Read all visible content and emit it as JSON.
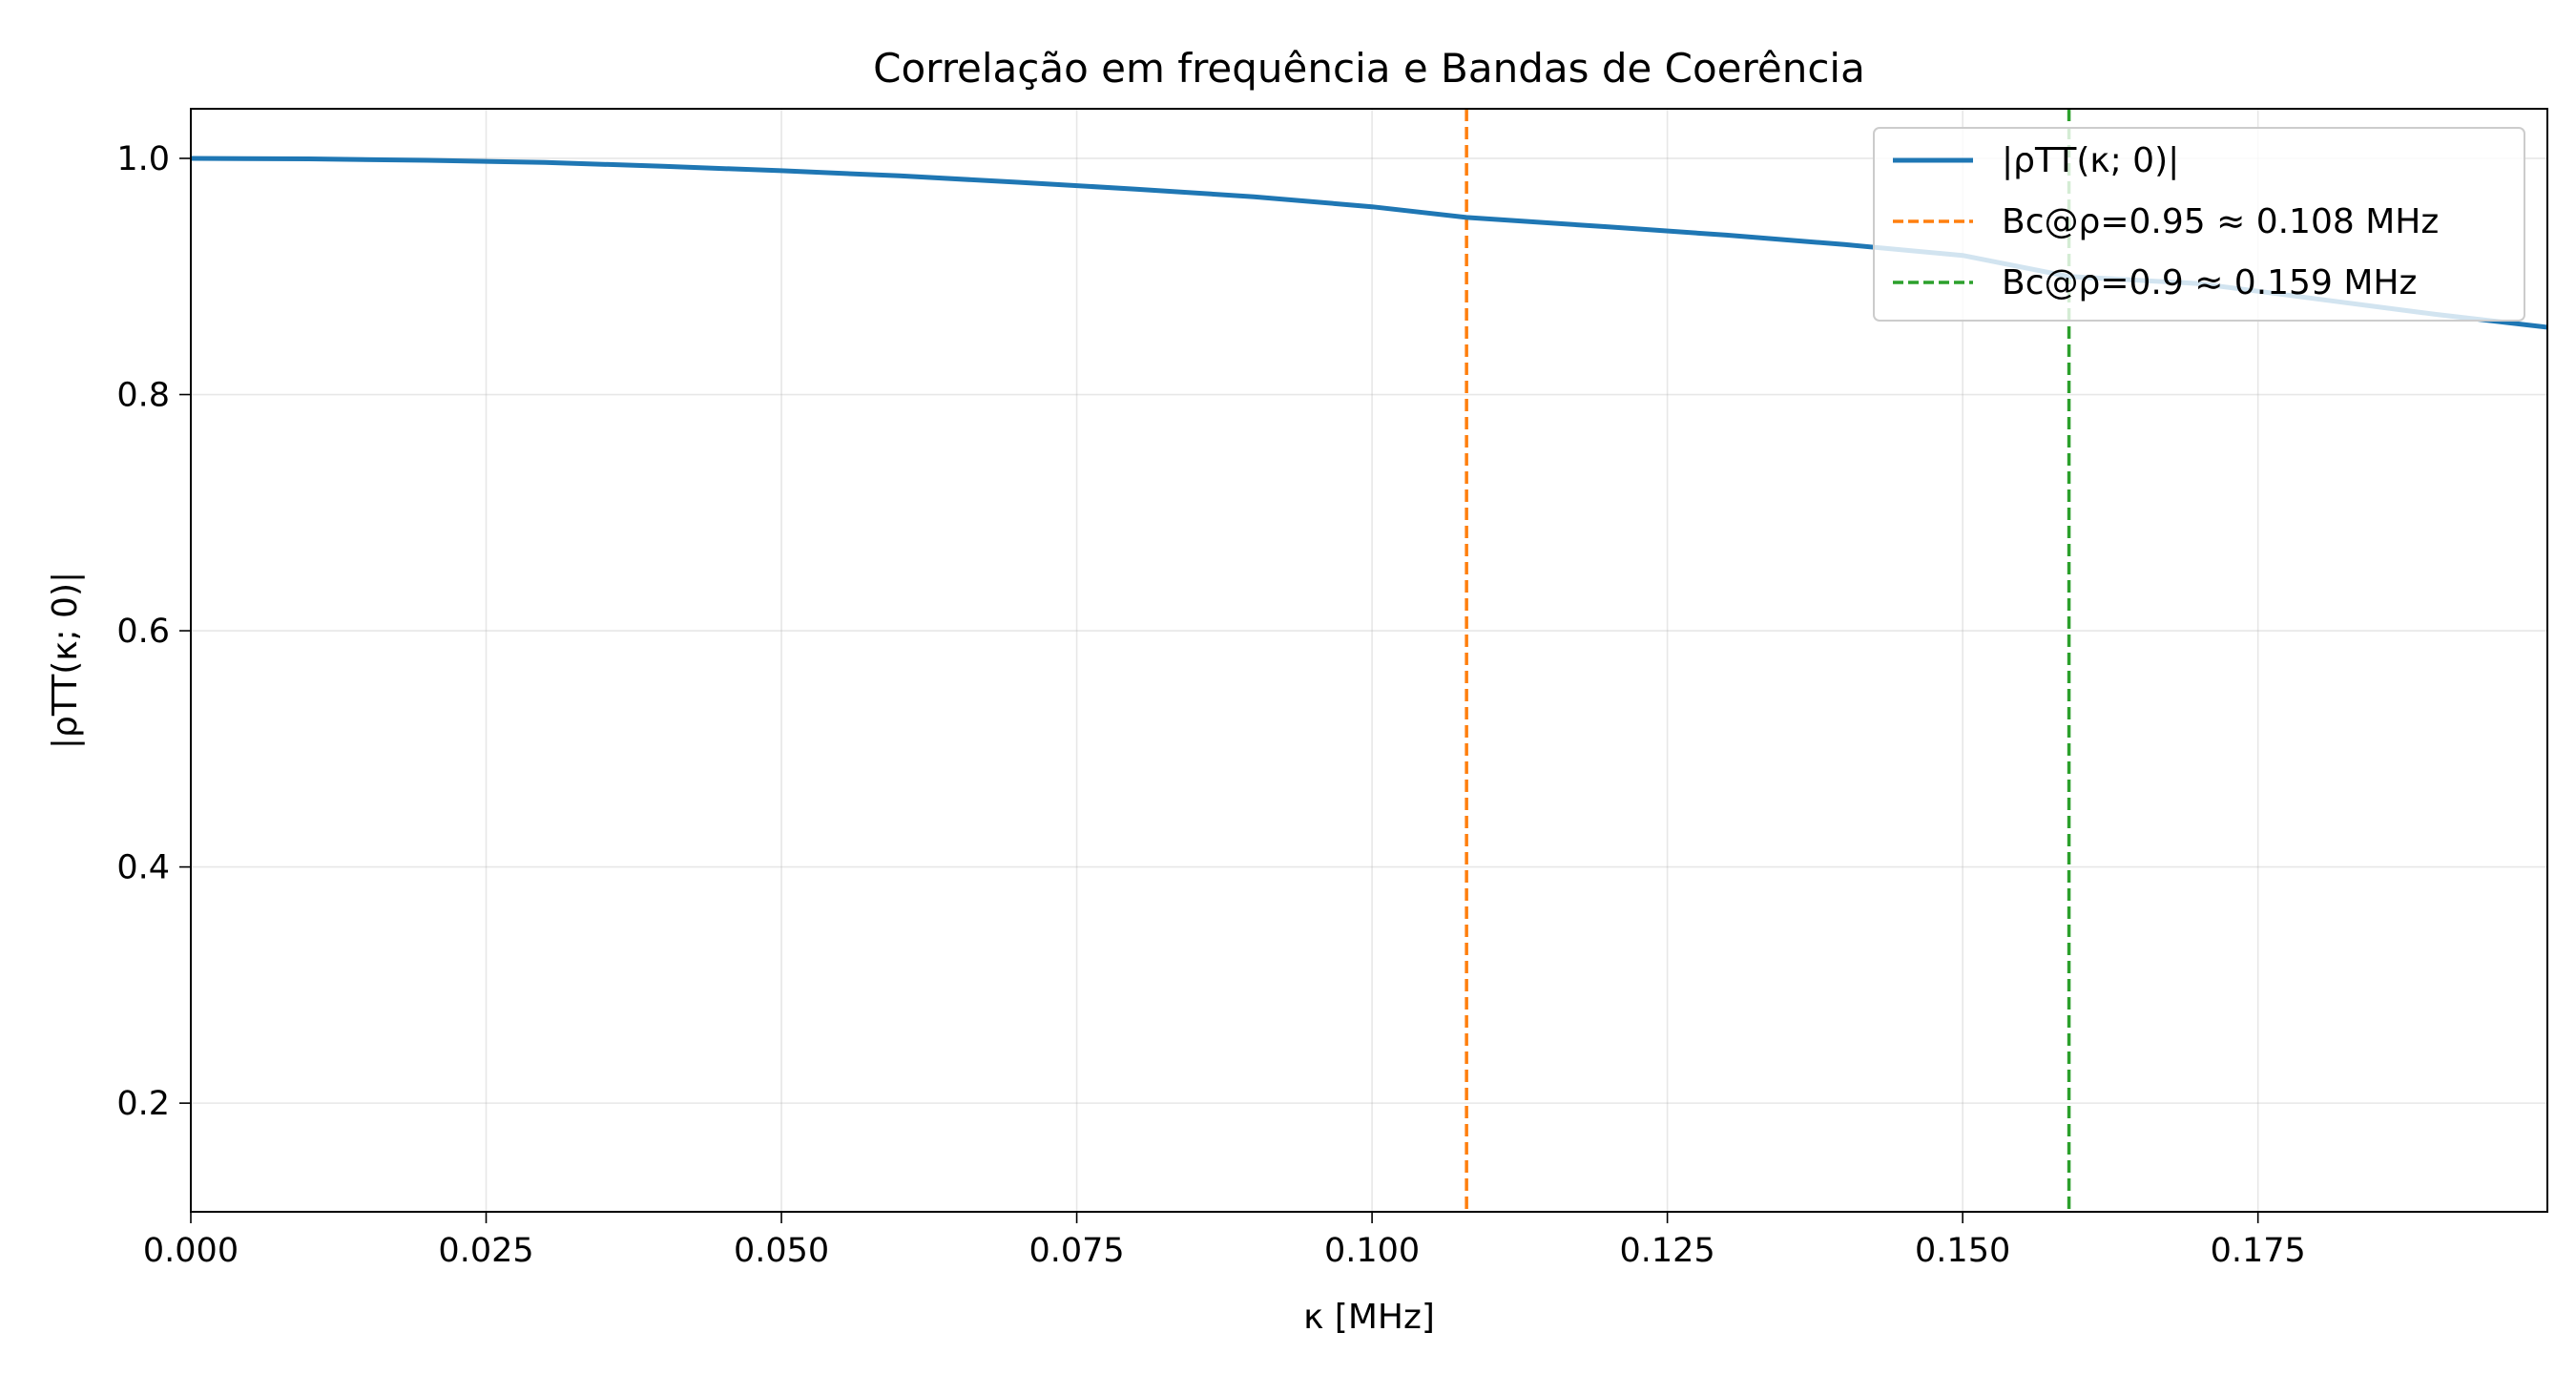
{
  "chart_data": {
    "type": "line",
    "title": "Correlação em frequência e Bandas de Coerência",
    "xlabel": "κ [MHz]",
    "ylabel": "|ρTT(κ; 0)|",
    "xlim": [
      0,
      0.1995
    ],
    "ylim": [
      0.108,
      1.042
    ],
    "xticks": [
      0.0,
      0.025,
      0.05,
      0.075,
      0.1,
      0.125,
      0.15,
      0.175
    ],
    "xtick_labels": [
      "0.000",
      "0.025",
      "0.050",
      "0.075",
      "0.100",
      "0.125",
      "0.150",
      "0.175"
    ],
    "yticks": [
      0.2,
      0.4,
      0.6,
      0.8,
      1.0
    ],
    "ytick_labels": [
      "0.2",
      "0.4",
      "0.6",
      "0.8",
      "1.0"
    ],
    "grid": true,
    "legend_position": "top-right",
    "series": [
      {
        "name": "|ρTT(κ; 0)|",
        "style": "solid",
        "color": "#1f77b4",
        "x": [
          0.0,
          0.01,
          0.02,
          0.03,
          0.04,
          0.05,
          0.06,
          0.07,
          0.08,
          0.09,
          0.1,
          0.108,
          0.12,
          0.13,
          0.14,
          0.15,
          0.159,
          0.17,
          0.18,
          0.19,
          0.1995
        ],
        "y": [
          1.0,
          0.9996,
          0.9984,
          0.9966,
          0.9933,
          0.9896,
          0.9852,
          0.9798,
          0.974,
          0.9675,
          0.959,
          0.95,
          0.942,
          0.935,
          0.927,
          0.9178,
          0.9,
          0.894,
          0.881,
          0.868,
          0.857
        ]
      }
    ],
    "vlines": [
      {
        "name": "Bc@ρ=0.95 ≈ 0.108 MHz",
        "x": 0.108,
        "style": "dashed",
        "color": "#ff7f0e"
      },
      {
        "name": "Bc@ρ=0.9 ≈ 0.159 MHz",
        "x": 0.159,
        "style": "dashed",
        "color": "#2ca02c"
      }
    ]
  }
}
